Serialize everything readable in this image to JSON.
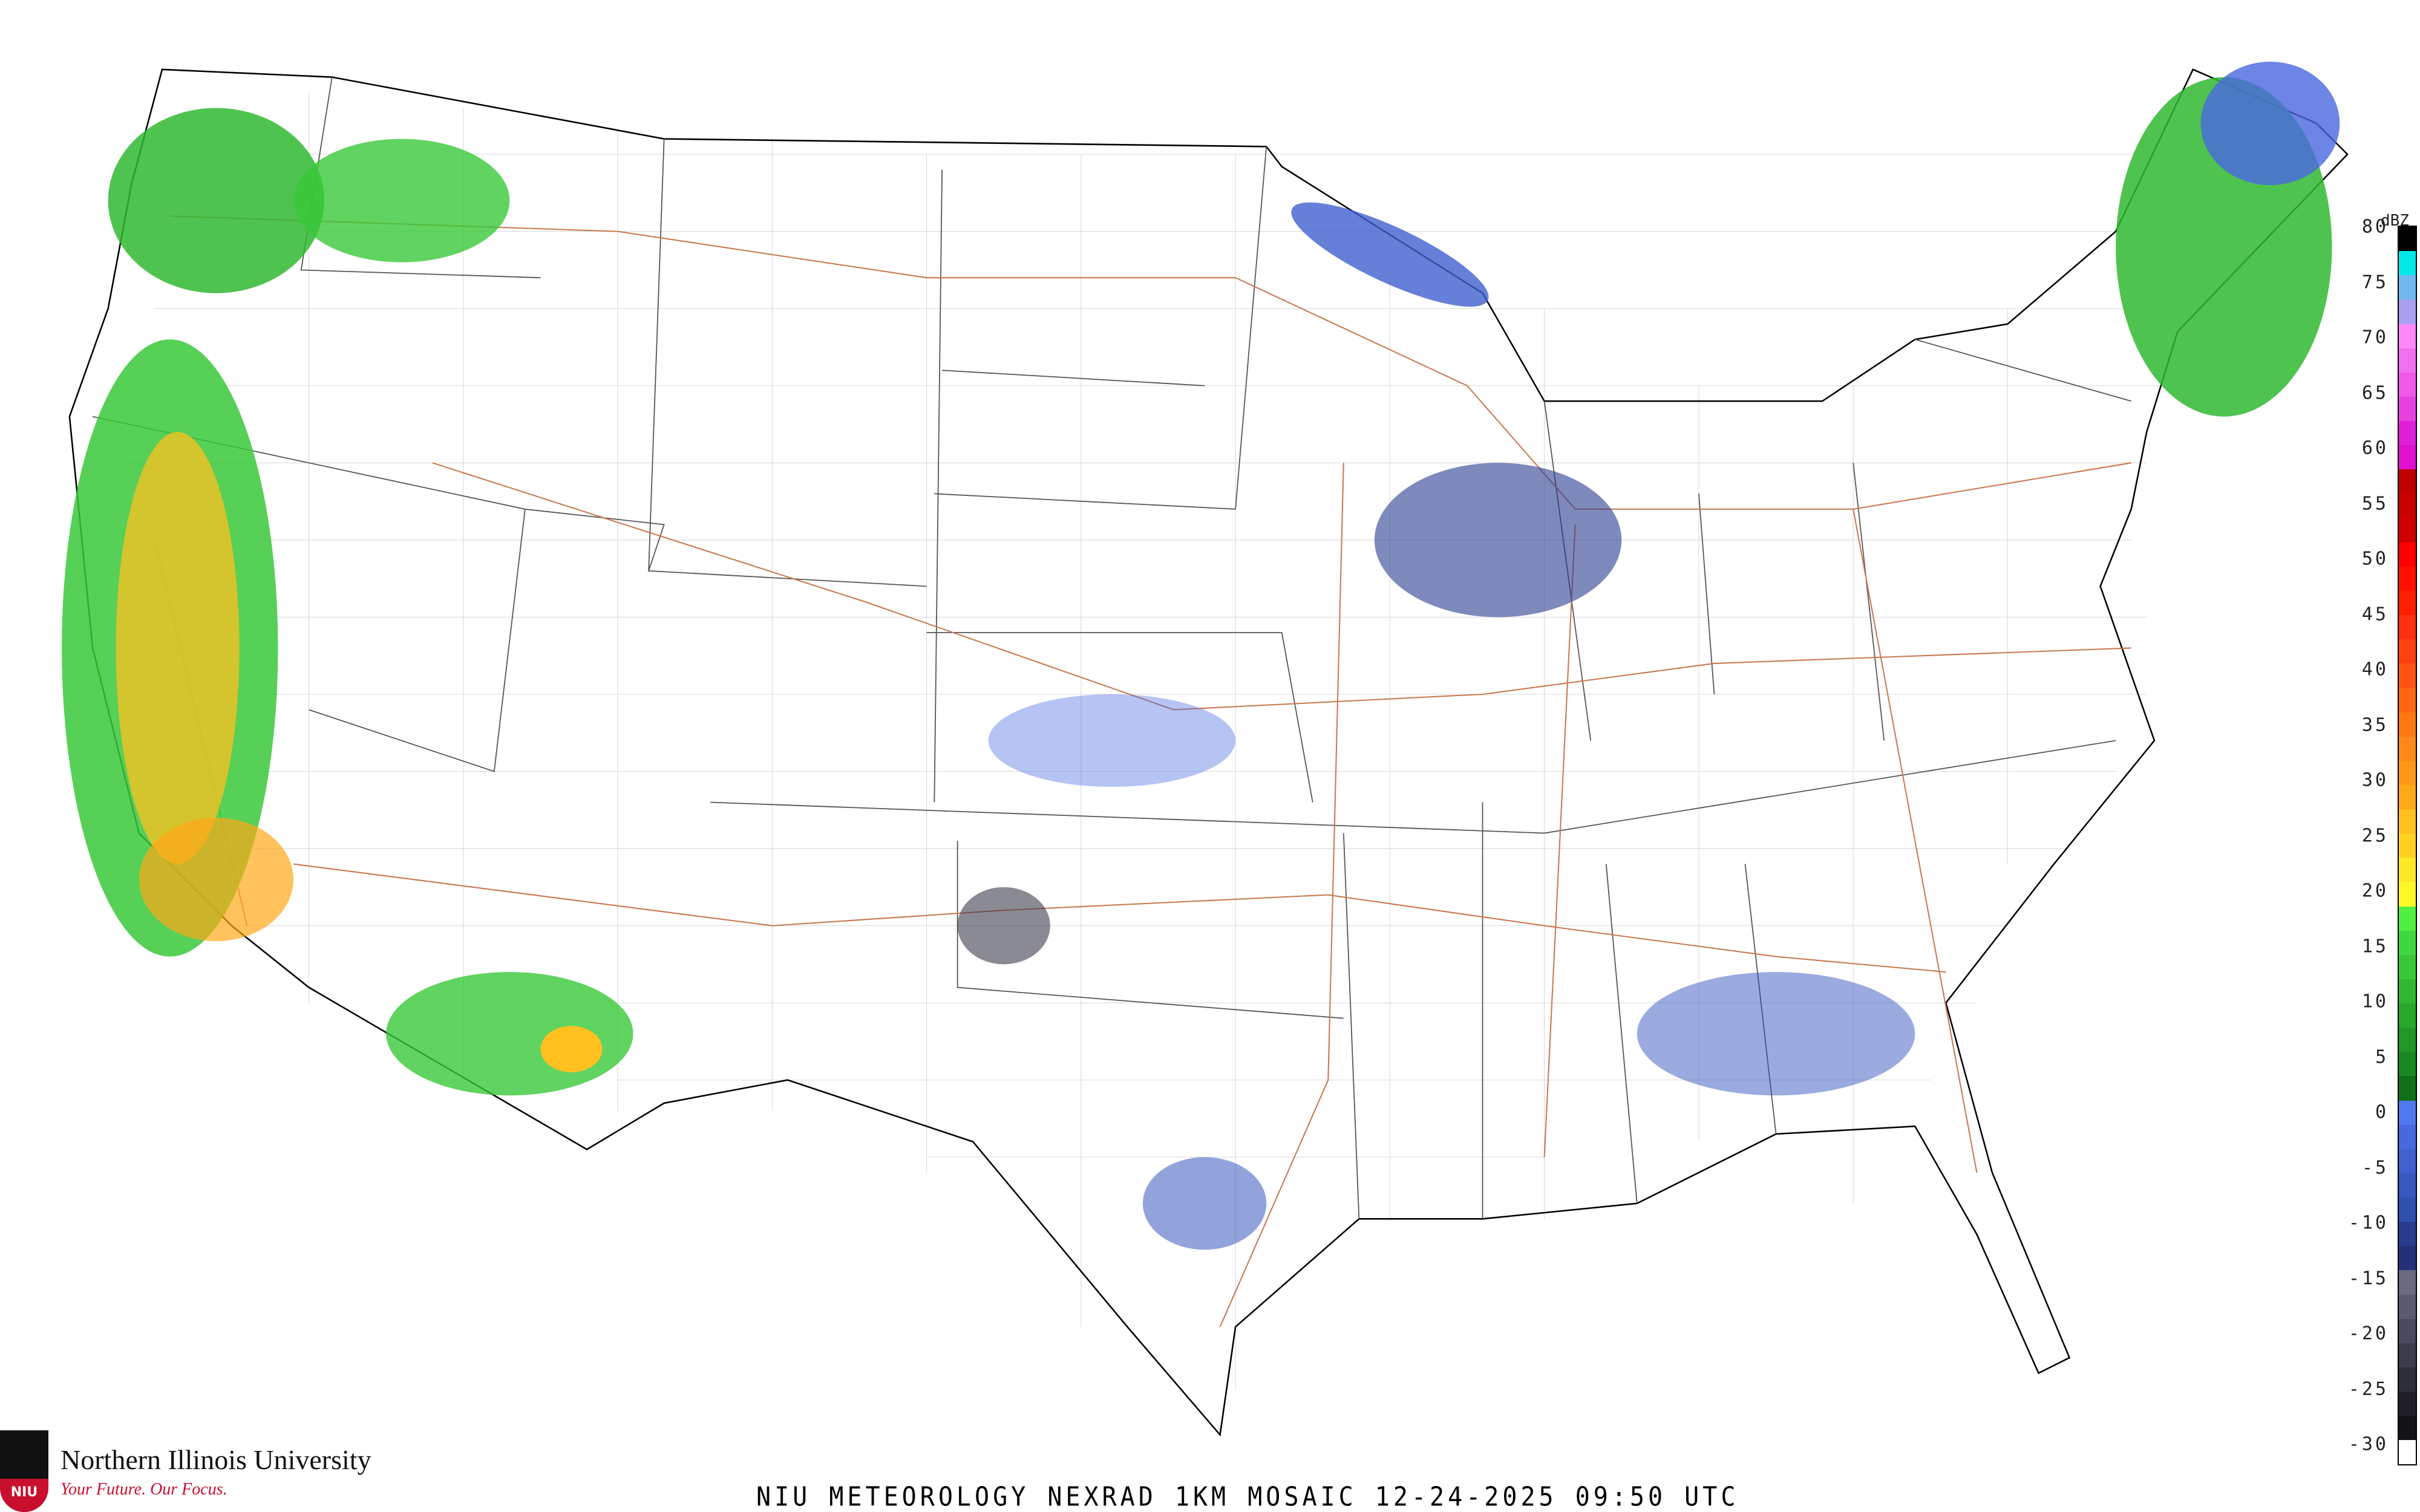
{
  "title": "NIU METEOROLOGY NEXRAD 1KM MOSAIC  12-24-2025 09:50 UTC",
  "logo": {
    "name": "Northern Illinois University",
    "tagline": "Your Future. Our Focus.",
    "seal_text": "NIU"
  },
  "legend": {
    "unit": "dBZ",
    "labels": [
      "80",
      "75",
      "70",
      "65",
      "60",
      "55",
      "50",
      "45",
      "40",
      "35",
      "30",
      "25",
      "20",
      "15",
      "10",
      "5",
      "0",
      "-5",
      "-10",
      "-15",
      "-20",
      "-25",
      "-30"
    ],
    "colors": [
      "#000000",
      "#00e8e8",
      "#70b8f0",
      "#a8a0f0",
      "#ff88f8",
      "#f070f0",
      "#f058e8",
      "#e840e0",
      "#e020d8",
      "#e010d0",
      "#c00000",
      "#c80000",
      "#d00000",
      "#ff0000",
      "#ff1000",
      "#ff2000",
      "#ff3010",
      "#ff4010",
      "#ff5510",
      "#ff6810",
      "#ff7810",
      "#ff8818",
      "#ff9818",
      "#ffa818",
      "#ffc020",
      "#ffd020",
      "#ffe828",
      "#fff828",
      "#50f040",
      "#40d840",
      "#38c838",
      "#30b830",
      "#28a828",
      "#209828",
      "#188820",
      "#107018",
      "#5078f0",
      "#4868e0",
      "#4060d0",
      "#3858c0",
      "#3050b0",
      "#283c90",
      "#243078",
      "#6a6a80",
      "#5a5a70",
      "#4a4a5e",
      "#3c3c4c",
      "#2e2e3a",
      "#202028",
      "#141418",
      "#ffffff"
    ]
  },
  "colors": {
    "state_line": "#555555",
    "county_line": "#cccccc",
    "highway": "#c87850",
    "coast": "#000000"
  }
}
